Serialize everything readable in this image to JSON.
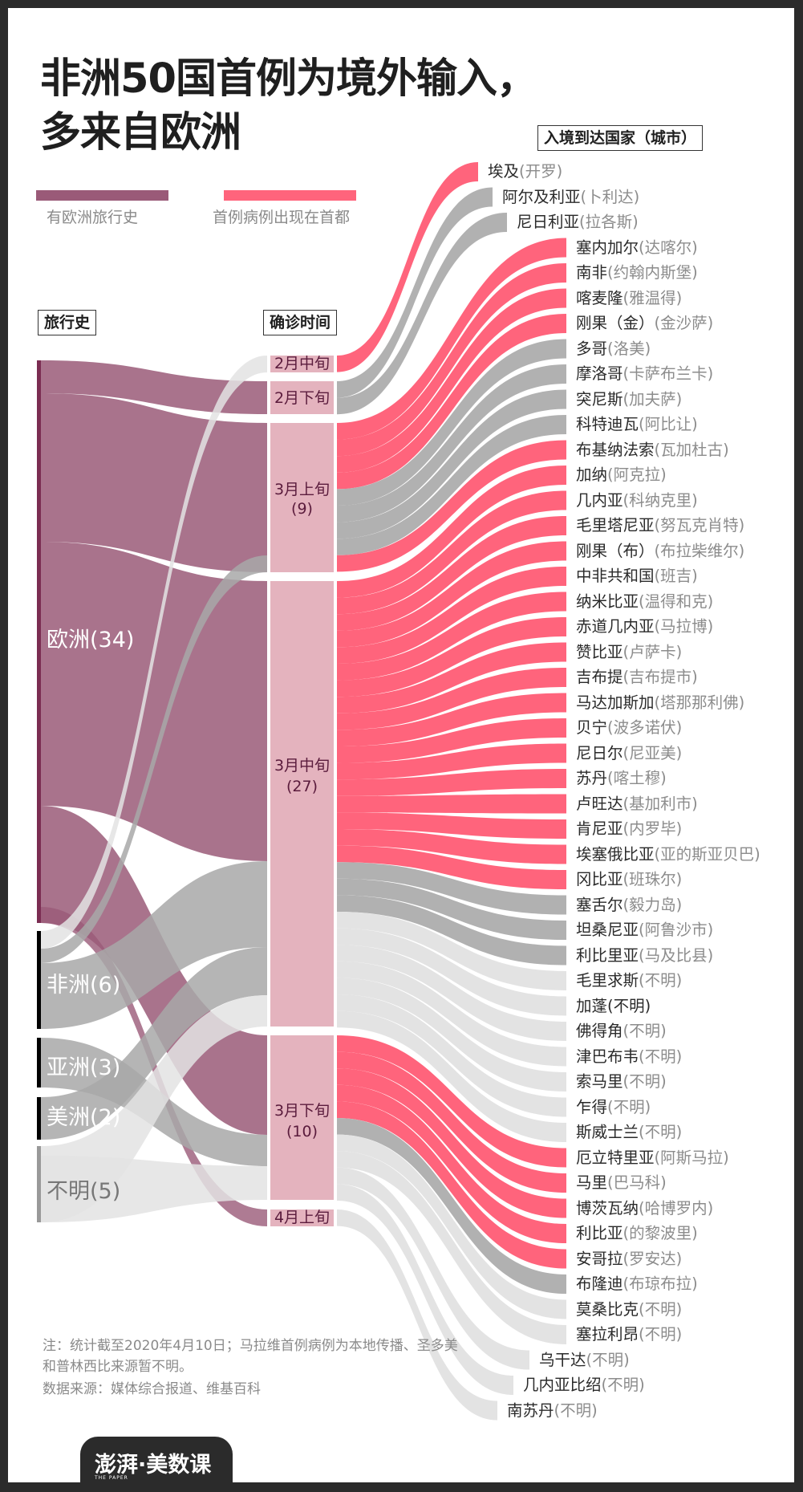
{
  "title": {
    "line1": "非洲50国首例为境外输入，",
    "line2": "多来自欧洲"
  },
  "legend": [
    {
      "label": "有欧洲旅行史",
      "color": "#9a5a78"
    },
    {
      "label": "首例病例出现在首都",
      "color": "#ff647c"
    }
  ],
  "headers": {
    "travel": "旅行史",
    "date": "确诊时间",
    "country": "入境到达国家（城市）"
  },
  "colors": {
    "europe_flow": "#9a5a78",
    "europe_bar": "#7b2d52",
    "known_other_bar": "#000000",
    "unknown_bar": "#999999",
    "other_flow": "#a8a8a8",
    "unknown_flow": "#e3e3e3",
    "capital": "#ff647c",
    "non_capital": "#b1b1b1",
    "unknown_city": "#e3e3e3",
    "node": "#e4b3be",
    "node_text": "#5a1b3c"
  },
  "notes": {
    "note": "注：统计截至2020年4月10日；马拉维首例病例为本地传播、圣多美和普林西比来源暂不明。",
    "source": "数据来源：媒体综合报道、维基百科"
  },
  "logo": {
    "text": "澎湃·美数课",
    "sub": "THE PAPER"
  },
  "chart_data": {
    "type": "sankey",
    "title": "非洲50国首例为境外输入，多来自欧洲",
    "columns": [
      "旅行史",
      "确诊时间",
      "入境到达国家（城市）"
    ],
    "travel_history": [
      {
        "name": "欧洲",
        "count": 34,
        "label": "欧洲(34)"
      },
      {
        "name": "非洲",
        "count": 6,
        "label": "非洲(6)"
      },
      {
        "name": "亚洲",
        "count": 3,
        "label": "亚洲(3)"
      },
      {
        "name": "美洲",
        "count": 2,
        "label": "美洲(2)"
      },
      {
        "name": "不明",
        "count": 5,
        "label": "不明(5)"
      }
    ],
    "confirm_time": [
      {
        "name": "2月中旬",
        "count": 1,
        "label": "2月中旬"
      },
      {
        "name": "2月下旬",
        "count": 2,
        "label": "2月下旬"
      },
      {
        "name": "3月上旬",
        "count": 9,
        "label": "3月上旬",
        "sub": "(9)"
      },
      {
        "name": "3月中旬",
        "count": 27,
        "label": "3月中旬",
        "sub": "(27)"
      },
      {
        "name": "3月下旬",
        "count": 10,
        "label": "3月下旬",
        "sub": "(10)"
      },
      {
        "name": "4月上旬",
        "count": 1,
        "label": "4月上旬"
      }
    ],
    "countries": [
      {
        "country": "埃及",
        "city": "(开罗)",
        "time": "2月中旬",
        "capital": true
      },
      {
        "country": "阿尔及利亚",
        "city": "(卜利达)",
        "time": "2月下旬",
        "capital": false
      },
      {
        "country": "尼日利亚",
        "city": "(拉各斯)",
        "time": "2月下旬",
        "capital": false
      },
      {
        "country": "塞内加尔",
        "city": "(达喀尔)",
        "time": "3月上旬",
        "capital": true
      },
      {
        "country": "南非",
        "city": "(约翰内斯堡)",
        "time": "3月上旬",
        "capital": true
      },
      {
        "country": "喀麦隆",
        "city": "(雅温得)",
        "time": "3月上旬",
        "capital": true
      },
      {
        "country": "刚果（金）",
        "city": "(金沙萨)",
        "time": "3月上旬",
        "capital": true
      },
      {
        "country": "多哥",
        "city": "(洛美)",
        "time": "3月上旬",
        "capital": false
      },
      {
        "country": "摩洛哥",
        "city": "(卡萨布兰卡)",
        "time": "3月上旬",
        "capital": false
      },
      {
        "country": "突尼斯",
        "city": "(加夫萨)",
        "time": "3月上旬",
        "capital": false
      },
      {
        "country": "科特迪瓦",
        "city": "(阿比让)",
        "time": "3月上旬",
        "capital": false
      },
      {
        "country": "布基纳法索",
        "city": "(瓦加杜古)",
        "time": "3月上旬",
        "capital": true
      },
      {
        "country": "加纳",
        "city": "(阿克拉)",
        "time": "3月中旬",
        "capital": true
      },
      {
        "country": "几内亚",
        "city": "(科纳克里)",
        "time": "3月中旬",
        "capital": true
      },
      {
        "country": "毛里塔尼亚",
        "city": "(努瓦克肖特)",
        "time": "3月中旬",
        "capital": true
      },
      {
        "country": "刚果（布）",
        "city": "(布拉柴维尔)",
        "time": "3月中旬",
        "capital": true
      },
      {
        "country": "中非共和国",
        "city": "(班吉)",
        "time": "3月中旬",
        "capital": true
      },
      {
        "country": "纳米比亚",
        "city": "(温得和克)",
        "time": "3月中旬",
        "capital": true
      },
      {
        "country": "赤道几内亚",
        "city": "(马拉博)",
        "time": "3月中旬",
        "capital": true
      },
      {
        "country": "赞比亚",
        "city": "(卢萨卡)",
        "time": "3月中旬",
        "capital": true
      },
      {
        "country": "吉布提",
        "city": "(吉布提市)",
        "time": "3月中旬",
        "capital": true
      },
      {
        "country": "马达加斯加",
        "city": "(塔那那利佛)",
        "time": "3月中旬",
        "capital": true
      },
      {
        "country": "贝宁",
        "city": "(波多诺伏)",
        "time": "3月中旬",
        "capital": true
      },
      {
        "country": "尼日尔",
        "city": "(尼亚美)",
        "time": "3月中旬",
        "capital": true
      },
      {
        "country": "苏丹",
        "city": "(喀土穆)",
        "time": "3月中旬",
        "capital": true
      },
      {
        "country": "卢旺达",
        "city": "(基加利市)",
        "time": "3月中旬",
        "capital": true
      },
      {
        "country": "肯尼亚",
        "city": "(内罗毕)",
        "time": "3月中旬",
        "capital": true
      },
      {
        "country": "埃塞俄比亚",
        "city": "(亚的斯亚贝巴)",
        "time": "3月中旬",
        "capital": true
      },
      {
        "country": "冈比亚",
        "city": "(班珠尔)",
        "time": "3月中旬",
        "capital": true
      },
      {
        "country": "塞舌尔",
        "city": "(毅力岛)",
        "time": "3月中旬",
        "capital": false
      },
      {
        "country": "坦桑尼亚",
        "city": "(阿鲁沙市)",
        "time": "3月中旬",
        "capital": false
      },
      {
        "country": "利比里亚",
        "city": "(马及比县)",
        "time": "3月中旬",
        "capital": false
      },
      {
        "country": "毛里求斯",
        "city": "(不明)",
        "time": "3月中旬",
        "capital": null
      },
      {
        "country": "加蓬",
        "city": "(不明)",
        "time": "3月中旬",
        "capital": null
      },
      {
        "country": "佛得角",
        "city": "(不明)",
        "time": "3月中旬",
        "capital": null
      },
      {
        "country": "津巴布韦",
        "city": "(不明)",
        "time": "3月中旬",
        "capital": null
      },
      {
        "country": "索马里",
        "city": "(不明)",
        "time": "3月中旬",
        "capital": null
      },
      {
        "country": "乍得",
        "city": "(不明)",
        "time": "3月中旬",
        "capital": null
      },
      {
        "country": "斯威士兰",
        "city": "(不明)",
        "time": "3月中旬",
        "capital": null
      },
      {
        "country": "厄立特里亚",
        "city": "(阿斯马拉)",
        "time": "3月下旬",
        "capital": true
      },
      {
        "country": "马里",
        "city": "(巴马科)",
        "time": "3月下旬",
        "capital": true
      },
      {
        "country": "博茨瓦纳",
        "city": "(哈博罗内)",
        "time": "3月下旬",
        "capital": true
      },
      {
        "country": "利比亚",
        "city": "(的黎波里)",
        "time": "3月下旬",
        "capital": true
      },
      {
        "country": "安哥拉",
        "city": "(罗安达)",
        "time": "3月下旬",
        "capital": true
      },
      {
        "country": "布隆迪",
        "city": "(布琼布拉)",
        "time": "3月下旬",
        "capital": false
      },
      {
        "country": "莫桑比克",
        "city": "(不明)",
        "time": "3月下旬",
        "capital": null
      },
      {
        "country": "塞拉利昂",
        "city": "(不明)",
        "time": "3月下旬",
        "capital": null
      },
      {
        "country": "乌干达",
        "city": "(不明)",
        "time": "3月下旬",
        "capital": null
      },
      {
        "country": "几内亚比绍",
        "city": "(不明)",
        "time": "3月下旬",
        "capital": null
      },
      {
        "country": "南苏丹",
        "city": "(不明)",
        "time": "4月上旬",
        "capital": null
      }
    ]
  }
}
